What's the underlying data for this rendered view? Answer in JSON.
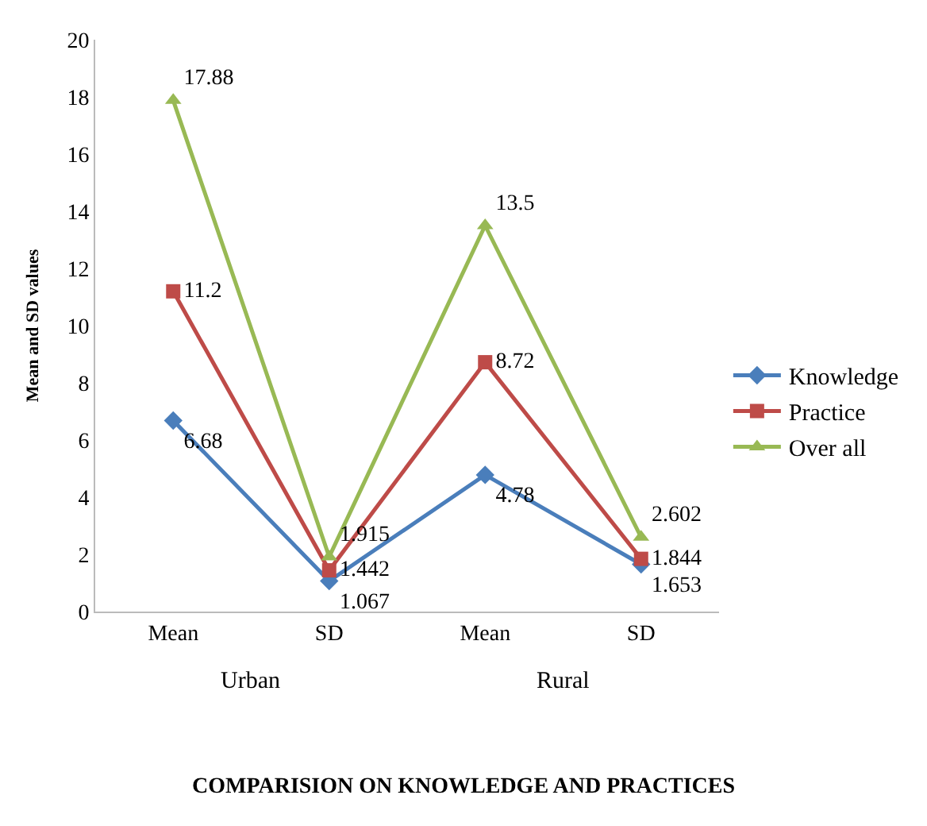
{
  "chart_data": {
    "type": "line",
    "title": "COMPARISION ON KNOWLEDGE AND PRACTICES",
    "ylabel": "Mean and SD values",
    "categories": [
      "Mean",
      "SD",
      "Mean",
      "SD"
    ],
    "annotations": [
      "Urban",
      "Rural"
    ],
    "series": [
      {
        "name": "Knowledge",
        "color": "#4a7ebb",
        "marker": "diamond",
        "values": [
          6.68,
          1.067,
          4.78,
          1.653
        ]
      },
      {
        "name": "Practice",
        "color": "#be4b48",
        "marker": "square",
        "values": [
          11.2,
          1.442,
          8.72,
          1.844
        ]
      },
      {
        "name": "Over all",
        "color": "#98b954",
        "marker": "triangle",
        "values": [
          17.88,
          1.915,
          13.5,
          2.602
        ]
      }
    ],
    "ylim": [
      0,
      20
    ],
    "yticks": [
      0,
      2,
      4,
      6,
      8,
      10,
      12,
      14,
      16,
      18,
      20
    ],
    "data_labels": true,
    "legend": "right",
    "grid": false
  }
}
